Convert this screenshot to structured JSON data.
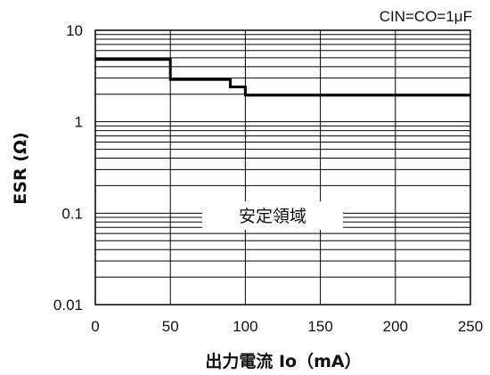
{
  "chart_data": {
    "type": "line",
    "condition_label": "CIN=CO=1μF",
    "region_label": "安定領域",
    "xlabel": "出力電流 Io（mA）",
    "ylabel": "ESR (Ω)",
    "x_scale": "linear",
    "y_scale": "log",
    "xlim": [
      0,
      250
    ],
    "ylim": [
      0.01,
      10
    ],
    "x_ticks": [
      0,
      50,
      100,
      150,
      200,
      250
    ],
    "x_tick_labels": [
      "0",
      "50",
      "100",
      "150",
      "200",
      "250"
    ],
    "y_ticks": [
      0.01,
      0.1,
      1,
      10
    ],
    "y_tick_labels": [
      "0.01",
      "0.1",
      "1",
      "10"
    ],
    "grid": true,
    "series": [
      {
        "x": [
          0,
          50,
          50,
          90,
          90,
          100,
          100,
          250
        ],
        "y": [
          4.8,
          4.8,
          2.9,
          2.9,
          2.4,
          2.4,
          1.95,
          1.95
        ]
      }
    ]
  }
}
